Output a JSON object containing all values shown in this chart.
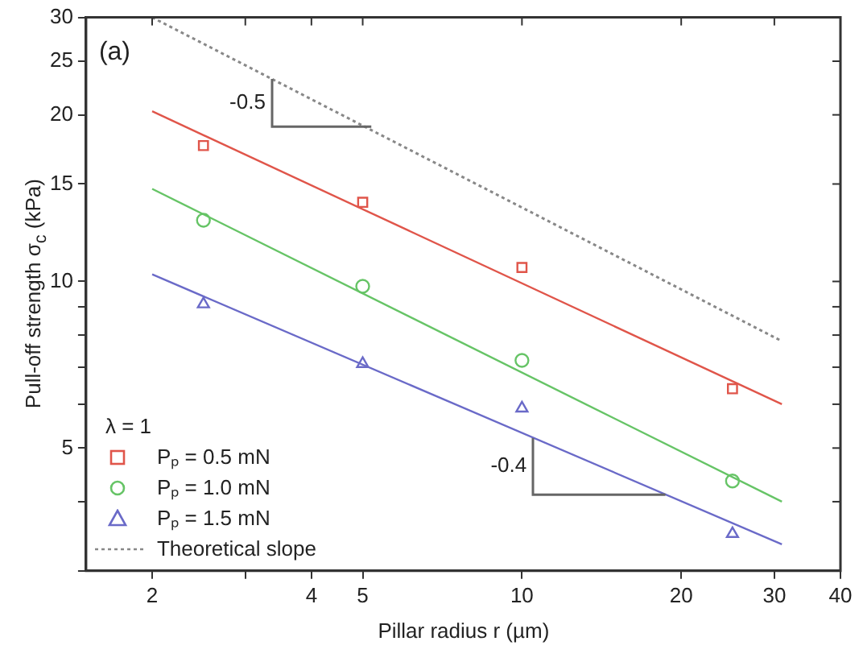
{
  "chart_data": {
    "type": "scatter",
    "xlabel": "Pillar radius r (µm)",
    "ylabel": "Pull-off strength σ$_{c}$ (kPa)",
    "legend_title": "λ = 1",
    "log": "xy",
    "xlim": [
      1.5,
      40
    ],
    "ylim": [
      3,
      30
    ],
    "xticks": [
      2,
      {
        "value": 3,
        "label": null
      },
      4,
      5,
      10,
      20,
      30,
      40
    ],
    "yticks": [
      {
        "value": 3,
        "label": null
      },
      {
        "value": 4,
        "label": null
      },
      5,
      {
        "value": 6,
        "label": null
      },
      {
        "value": 7,
        "label": null
      },
      {
        "value": 8,
        "label": null
      },
      {
        "value": 9,
        "label": null
      },
      10,
      15,
      20,
      25,
      30
    ],
    "grid": false,
    "legend": "bottom left",
    "annotations": [
      "(a)",
      {
        "text": "-0.5",
        "x": 3.37,
        "y": 23.2
      },
      {
        "text": "-0.4",
        "x": 10.5,
        "y": 5.22
      }
    ],
    "series": [
      {
        "type": "scatter",
        "name": "Pₚ = 0.5 mN",
        "color": "#e0554a",
        "marker": "square",
        "x": [
          2.5,
          5,
          10,
          25
        ],
        "values": [
          17.6,
          13.9,
          10.6,
          6.4
        ]
      },
      {
        "type": "scatter",
        "name": "Pₚ = 1.0 mN",
        "color": "#66c466",
        "marker": "circle",
        "x": [
          2.5,
          5,
          10,
          25
        ],
        "values": [
          12.9,
          9.8,
          7.2,
          4.36
        ]
      },
      {
        "type": "scatter",
        "name": "Pₚ = 1.5 mN",
        "color": "#6a6ac8",
        "marker": "triangle",
        "x": [
          2.5,
          5,
          10,
          25
        ],
        "values": [
          9.1,
          7.1,
          5.9,
          3.5
        ]
      },
      {
        "type": "line",
        "color": "#e0554a",
        "line_style": "solid",
        "x": [
          2,
          31
        ],
        "values": [
          20.3,
          6.0
        ]
      },
      {
        "type": "line",
        "color": "#66c466",
        "line_style": "solid",
        "x": [
          2,
          31
        ],
        "values": [
          14.7,
          4.0
        ]
      },
      {
        "type": "line",
        "color": "#6a6ac8",
        "line_style": "solid",
        "x": [
          2,
          31
        ],
        "values": [
          10.3,
          3.35
        ]
      },
      {
        "type": "line",
        "name": "Theoretical slope",
        "color": "#888888",
        "line_style": "dotted",
        "x": [
          2,
          31
        ],
        "values": [
          30,
          7.8
        ]
      }
    ]
  }
}
